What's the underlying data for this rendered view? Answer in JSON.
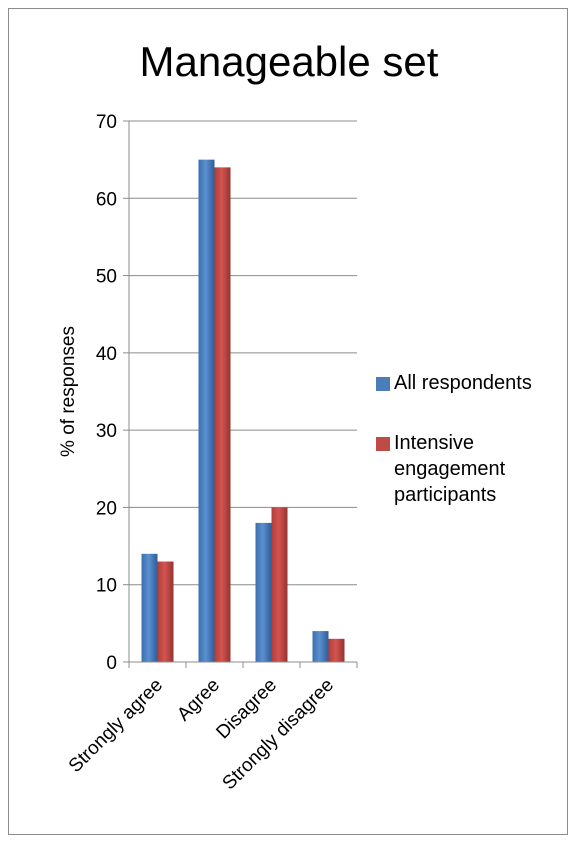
{
  "chart_data": {
    "type": "bar",
    "title": "Manageable set",
    "ylabel": "% of responses",
    "xlabel": "",
    "ylim": [
      0,
      70
    ],
    "yticks": [
      0,
      10,
      20,
      30,
      40,
      50,
      60,
      70
    ],
    "categories": [
      "Strongly agree",
      "Agree",
      "Disagree",
      "Strongly disagree"
    ],
    "series": [
      {
        "name": "All respondents",
        "values": [
          14,
          65,
          18,
          4
        ],
        "color": "#4a7ebb"
      },
      {
        "name": "Intensive engagement participants",
        "values": [
          13,
          64,
          20,
          3
        ],
        "color": "#be4b48"
      }
    ],
    "legend_position": "right",
    "grid": true
  }
}
